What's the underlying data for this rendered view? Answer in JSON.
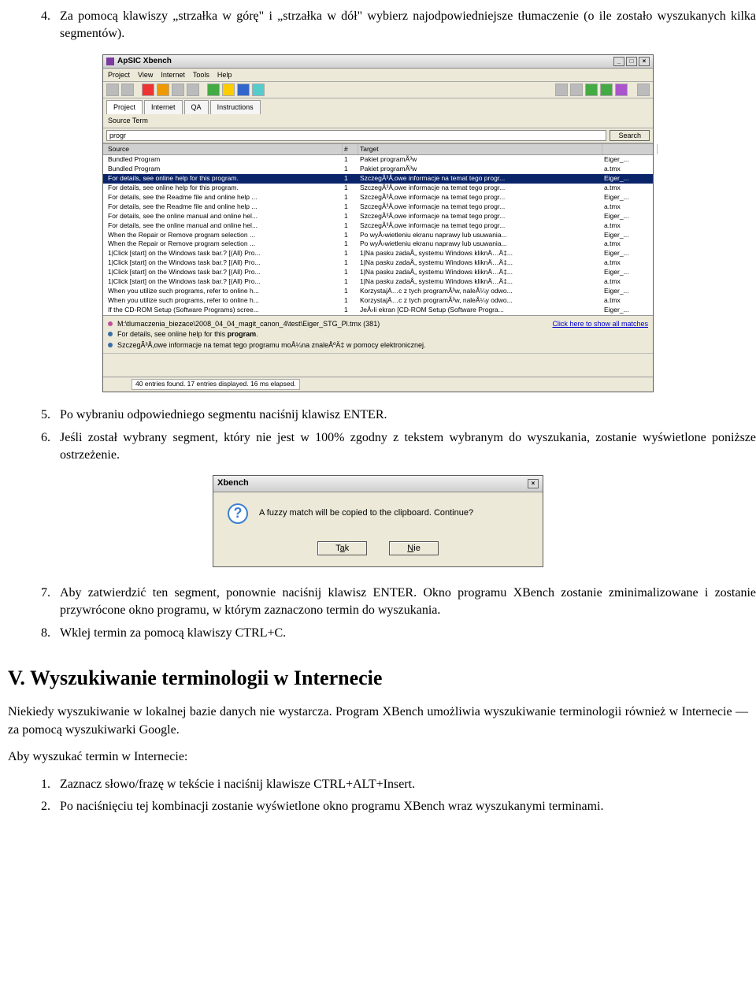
{
  "doc": {
    "item4": "Za pomocą klawiszy „strzałka w górę\" i „strzałka w dół\" wybierz najodpowiedniejsze tłumaczenie (o ile zostało wyszukanych kilka segmentów).",
    "item5": "Po wybraniu odpowiedniego segmentu naciśnij klawisz ENTER.",
    "item6": "Jeśli został wybrany segment, który nie jest w 100% zgodny z tekstem wybranym do wyszukania, zostanie wyświetlone poniższe ostrzeżenie.",
    "item7": "Aby zatwierdzić ten segment, ponownie naciśnij klawisz ENTER. Okno programu XBench zostanie zminimalizowane i zostanie przywrócone okno programu, w którym zaznaczono termin do wyszukania.",
    "item8": "Wklej termin za pomocą klawiszy CTRL+C.",
    "sectionV": "V. Wyszukiwanie terminologii w Internecie",
    "paraV": "Niekiedy wyszukiwanie w lokalnej bazie danych nie wystarcza. Program XBench umożliwia wyszukiwanie terminologii również w Internecie — za pomocą wyszukiwarki Google.",
    "paraSearch": "Aby wyszukać termin w Internecie:",
    "step1": "Zaznacz słowo/frazę w tekście i naciśnij klawisze CTRL+ALT+Insert.",
    "step2": "Po naciśnięciu tej kombinacji zostanie wyświetlone okno programu XBench wraz wyszukanymi terminami."
  },
  "win": {
    "title": "ApSIC Xbench",
    "menu": [
      "Project",
      "View",
      "Internet",
      "Tools",
      "Help"
    ],
    "tabs": [
      "Project",
      "Internet",
      "QA",
      "Instructions"
    ],
    "sourceTermLabel": "Source Term",
    "searchBtn": "Search",
    "searchValue": "progr",
    "headers": {
      "source": "Source",
      "num": "#",
      "target": "Target",
      "file": ""
    },
    "rows": [
      {
        "s": "Bundled Program",
        "n": "1",
        "t": "Pakiet programÃ³w",
        "f": "Eiger_..."
      },
      {
        "s": "Bundled Program",
        "n": "1",
        "t": "Pakiet programÃ³w",
        "f": "a.tmx"
      },
      {
        "s": "For details, see online help for this program.",
        "n": "1",
        "t": "SzczegÃ³Å‚owe informacje na temat tego progr...",
        "f": "Eiger_...",
        "sel": true
      },
      {
        "s": "For details, see online help for this program.",
        "n": "1",
        "t": "SzczegÃ³Å‚owe informacje na temat tego progr...",
        "f": "a.tmx"
      },
      {
        "s": "For details, see the Readme file and online help ...",
        "n": "1",
        "t": "SzczegÃ³Å‚owe informacje na temat tego progr...",
        "f": "Eiger_..."
      },
      {
        "s": "For details, see the Readme file and online help ...",
        "n": "1",
        "t": "SzczegÃ³Å‚owe informacje na temat tego progr...",
        "f": "a.tmx"
      },
      {
        "s": "For details, see the online manual and online hel...",
        "n": "1",
        "t": "SzczegÃ³Å‚owe informacje na temat tego progr...",
        "f": "Eiger_..."
      },
      {
        "s": "For details, see the online manual and online hel...",
        "n": "1",
        "t": "SzczegÃ³Å‚owe informacje na temat tego progr...",
        "f": "a.tmx"
      },
      {
        "s": "When the Repair or Remove program selection ...",
        "n": "1",
        "t": "Po wyÅ›wietleniu ekranu naprawy lub usuwania...",
        "f": "Eiger_..."
      },
      {
        "s": "When the Repair or Remove program selection ...",
        "n": "1",
        "t": "Po wyÅ›wietleniu ekranu naprawy lub usuwania...",
        "f": "a.tmx"
      },
      {
        "s": "1|Click [start] on the Windows task bar.? [(All) Pro...",
        "n": "1",
        "t": "1|Na pasku zadaÅ„ systemu Windows kliknÄ…Ä‡...",
        "f": "Eiger_..."
      },
      {
        "s": "1|Click [start] on the Windows task bar.? [(All) Pro...",
        "n": "1",
        "t": "1|Na pasku zadaÅ„ systemu Windows kliknÄ…Ä‡...",
        "f": "a.tmx"
      },
      {
        "s": "1|Click [start] on the Windows task bar.? [(All) Pro...",
        "n": "1",
        "t": "1|Na pasku zadaÅ„ systemu Windows kliknÄ…Ä‡...",
        "f": "Eiger_..."
      },
      {
        "s": "1|Click [start] on the Windows task bar.? [(All) Pro...",
        "n": "1",
        "t": "1|Na pasku zadaÅ„ systemu Windows kliknÄ…Ä‡...",
        "f": "a.tmx"
      },
      {
        "s": "When you utilize such programs, refer to online h...",
        "n": "1",
        "t": "KorzystajÄ…c z tych programÃ³w, naleÅ¼y odwo...",
        "f": "Eiger_..."
      },
      {
        "s": "When you utilize such programs, refer to online h...",
        "n": "1",
        "t": "KorzystajÄ…c z tych programÃ³w, naleÅ¼y odwo...",
        "f": "a.tmx"
      },
      {
        "s": "If the CD-ROM Setup (Software Programs) scree...",
        "n": "1",
        "t": "JeÅ›li ekran [CD-ROM Setup (Software Progra...",
        "f": "Eiger_..."
      }
    ],
    "detail": {
      "path": "M:\\tlumaczenia_biezace\\2008_04_04_magit_canon_4\\test\\Eiger_STG_Pl.tmx (381)",
      "link": "Click here to show all matches",
      "line2a": "For details, see online help for this ",
      "line2b": "program",
      "line2c": ".",
      "line3": "SzczegÃ³Å‚owe informacje na temat tego programu moÅ¼na znaleÅºÄ‡ w pomocy elektronicznej."
    },
    "status": "40 entries found. 17 entries displayed. 16 ms elapsed."
  },
  "dlg": {
    "title": "Xbench",
    "msg": "A fuzzy match will be copied to the clipboard. Continue?",
    "yes_pre": "T",
    "yes_u": "a",
    "yes_post": "k",
    "no_u": "N",
    "no_post": "ie"
  }
}
